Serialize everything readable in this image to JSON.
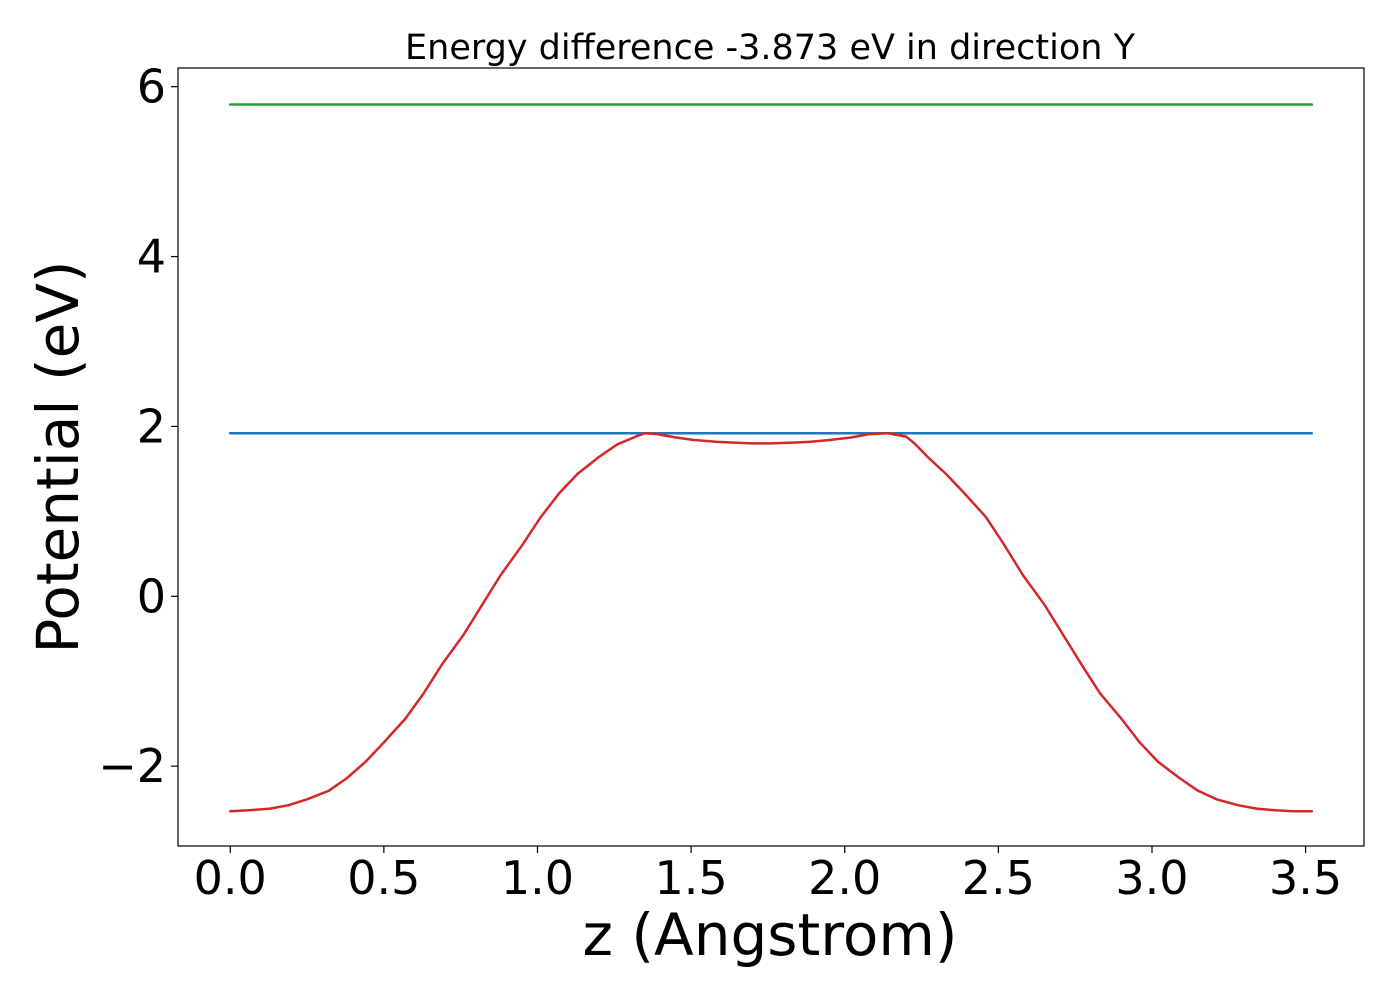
{
  "chart_data": {
    "type": "line",
    "title": "Energy difference -3.873 eV in direction Y",
    "xlabel": "z (Angstrom)",
    "ylabel": "Potential (eV)",
    "xlim": [
      -0.17,
      3.69
    ],
    "ylim": [
      -2.94,
      6.22
    ],
    "x_ticks": [
      0.0,
      0.5,
      1.0,
      1.5,
      2.0,
      2.5,
      3.0,
      3.5
    ],
    "x_tick_labels": [
      "0.0",
      "0.5",
      "1.0",
      "1.5",
      "2.0",
      "2.5",
      "3.0",
      "3.5"
    ],
    "y_ticks": [
      -2,
      0,
      2,
      4,
      6
    ],
    "y_tick_labels": [
      "−2",
      "0",
      "2",
      "4",
      "6"
    ],
    "grid": false,
    "series": [
      {
        "color": "#2ca02c",
        "x": [
          0.0,
          3.52
        ],
        "y": [
          5.79,
          5.79
        ]
      },
      {
        "color": "#1f77b4",
        "x": [
          0.0,
          3.52
        ],
        "y": [
          1.92,
          1.92
        ]
      },
      {
        "color": "#d62728",
        "x": [
          0.0,
          0.06,
          0.13,
          0.19,
          0.25,
          0.32,
          0.38,
          0.44,
          0.5,
          0.57,
          0.63,
          0.69,
          0.76,
          0.82,
          0.88,
          0.95,
          1.01,
          1.07,
          1.13,
          1.2,
          1.26,
          1.32,
          1.35,
          1.39,
          1.45,
          1.51,
          1.58,
          1.64,
          1.7,
          1.76,
          1.83,
          1.89,
          1.95,
          2.02,
          2.08,
          2.14,
          2.2,
          2.23,
          2.27,
          2.33,
          2.39,
          2.46,
          2.52,
          2.58,
          2.65,
          2.71,
          2.77,
          2.83,
          2.9,
          2.96,
          3.02,
          3.09,
          3.15,
          3.21,
          3.28,
          3.34,
          3.4,
          3.46,
          3.52
        ],
        "y": [
          -2.53,
          -2.52,
          -2.5,
          -2.46,
          -2.39,
          -2.29,
          -2.14,
          -1.95,
          -1.72,
          -1.44,
          -1.14,
          -0.8,
          -0.45,
          -0.1,
          0.25,
          0.6,
          0.93,
          1.21,
          1.44,
          1.64,
          1.79,
          1.88,
          1.92,
          1.91,
          1.87,
          1.84,
          1.82,
          1.81,
          1.8,
          1.8,
          1.81,
          1.82,
          1.84,
          1.87,
          1.91,
          1.92,
          1.88,
          1.79,
          1.64,
          1.44,
          1.21,
          0.93,
          0.6,
          0.25,
          -0.1,
          -0.45,
          -0.8,
          -1.14,
          -1.44,
          -1.72,
          -1.95,
          -2.14,
          -2.29,
          -2.39,
          -2.46,
          -2.5,
          -2.52,
          -2.53,
          -2.53
        ]
      }
    ]
  }
}
